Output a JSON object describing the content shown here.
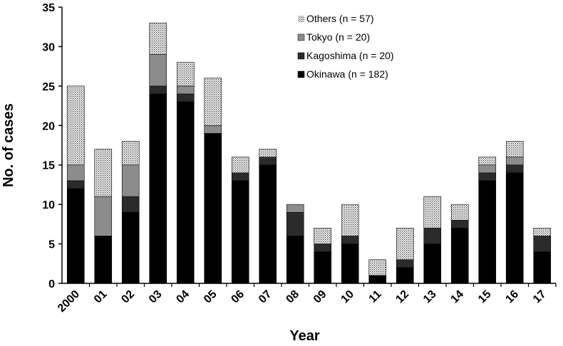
{
  "chart_data": {
    "type": "bar",
    "stacked": true,
    "xlabel": "Year",
    "ylabel": "No. of cases",
    "ylim": [
      0,
      35
    ],
    "yticks": [
      0,
      5,
      10,
      15,
      20,
      25,
      30,
      35
    ],
    "grid": false,
    "legend_position": "top-right",
    "categories": [
      "2000",
      "01",
      "02",
      "03",
      "04",
      "05",
      "06",
      "07",
      "08",
      "09",
      "10",
      "11",
      "12",
      "13",
      "14",
      "15",
      "16",
      "17"
    ],
    "series": [
      {
        "name": "Okinawa (n = 182)",
        "color": "#000000",
        "pattern": "solid",
        "values": [
          12,
          6,
          9,
          24,
          23,
          19,
          13,
          15,
          6,
          4,
          5,
          1,
          2,
          5,
          7,
          13,
          14,
          4
        ]
      },
      {
        "name": "Kagoshima (n = 20)",
        "color": "#2b2b2b",
        "pattern": "solid",
        "values": [
          1,
          0,
          2,
          1,
          1,
          0,
          1,
          1,
          3,
          1,
          1,
          0,
          1,
          2,
          1,
          1,
          1,
          2
        ]
      },
      {
        "name": "Tokyo (n = 20)",
        "color": "#8c8c8c",
        "pattern": "solid",
        "values": [
          2,
          5,
          4,
          4,
          1,
          1,
          0,
          0,
          1,
          0,
          0,
          0,
          0,
          0,
          0,
          1,
          1,
          0
        ]
      },
      {
        "name": "Others (n = 57)",
        "color": "#ffffff",
        "pattern": "dotted",
        "values": [
          10,
          6,
          3,
          4,
          3,
          6,
          2,
          1,
          0,
          2,
          4,
          2,
          4,
          4,
          2,
          1,
          2,
          1
        ]
      }
    ]
  }
}
